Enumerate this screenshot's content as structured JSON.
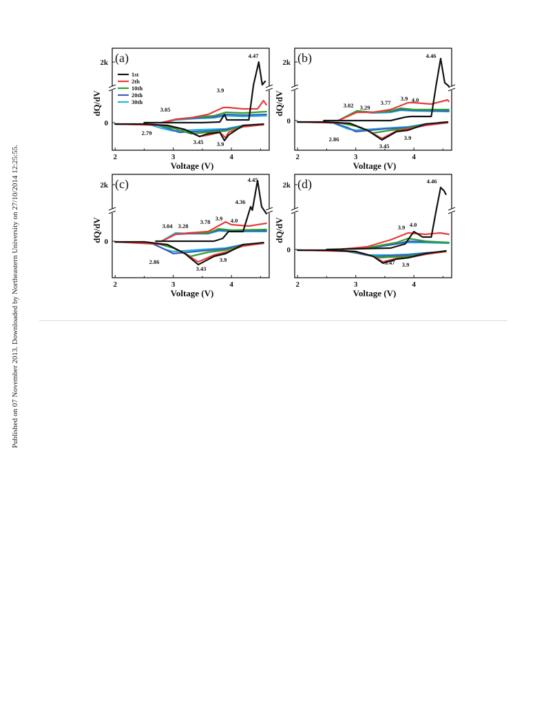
{
  "side_note": "Published on 07 November 2013. Downloaded by Northeastern University on 27/10/2014 12:25:55.",
  "colors": {
    "1st": "#111111",
    "2th": "#e8393a",
    "10th": "#2ca02c",
    "20th": "#3d5bbf",
    "30th": "#22b5d9"
  },
  "chart_data": [
    {
      "type": "line",
      "panel": "(a)",
      "xlabel": "Voltage (V)",
      "ylabel": "dQ/dV",
      "xlim": [
        1.95,
        4.65
      ],
      "x_ticks": [
        "2",
        "3",
        "4"
      ],
      "y_ticks": [
        "0",
        "2k"
      ],
      "legend": [
        "1st",
        "2th",
        "10th",
        "20th",
        "30th"
      ],
      "legend_position": "upper-left",
      "annotations": [
        "4.47",
        "3.9",
        "3.05",
        "2.79",
        "3.45",
        "3.9"
      ],
      "series": [
        {
          "name": "1st",
          "charge_peaks_V": [
            3.9,
            4.47
          ],
          "discharge_peaks_V": [
            3.45,
            3.9
          ]
        },
        {
          "name": "2th",
          "charge_peaks_V": [
            3.05,
            3.9
          ],
          "discharge_peaks_V": [
            3.45,
            3.9
          ]
        },
        {
          "name": "10th",
          "charge_peaks_V": [
            3.05,
            3.9
          ],
          "discharge_peaks_V": [
            3.3,
            3.9
          ]
        },
        {
          "name": "20th",
          "charge_peaks_V": [
            3.05,
            3.9
          ],
          "discharge_peaks_V": [
            3.1,
            3.9
          ]
        },
        {
          "name": "30th",
          "charge_peaks_V": [
            3.05,
            3.9
          ],
          "discharge_peaks_V": [
            2.79,
            3.9
          ]
        }
      ]
    },
    {
      "type": "line",
      "panel": "(b)",
      "xlabel": "Voltage (V)",
      "ylabel": "dQ/dV",
      "xlim": [
        1.95,
        4.65
      ],
      "x_ticks": [
        "2",
        "3",
        "4"
      ],
      "y_ticks": [
        "0",
        "2k"
      ],
      "annotations": [
        "4.46",
        "3.02",
        "3.29",
        "3.77",
        "3.9",
        "4.0",
        "2.86",
        "3.45",
        "3.9"
      ],
      "series": [
        {
          "name": "1st",
          "charge_peaks_V": [
            3.9,
            4.46
          ],
          "discharge_peaks_V": [
            3.45,
            3.9
          ]
        },
        {
          "name": "2th",
          "charge_peaks_V": [
            3.02,
            3.29,
            3.9,
            4.0
          ],
          "discharge_peaks_V": [
            3.45,
            3.9
          ]
        },
        {
          "name": "10th",
          "charge_peaks_V": [
            3.02,
            3.29,
            3.77
          ],
          "discharge_peaks_V": [
            3.3,
            3.9
          ]
        },
        {
          "name": "20th",
          "charge_peaks_V": [
            3.02,
            3.29,
            3.77
          ],
          "discharge_peaks_V": [
            3.0,
            3.9
          ]
        },
        {
          "name": "30th",
          "charge_peaks_V": [
            3.02,
            3.29,
            3.77
          ],
          "discharge_peaks_V": [
            2.86,
            3.9
          ]
        }
      ]
    },
    {
      "type": "line",
      "panel": "(c)",
      "xlabel": "Voltage (V)",
      "ylabel": "dQ/dV",
      "xlim": [
        1.95,
        4.65
      ],
      "x_ticks": [
        "2",
        "3",
        "4"
      ],
      "y_ticks": [
        "0",
        "2k"
      ],
      "annotations": [
        "4.45",
        "4.36",
        "3.04",
        "3.28",
        "3.78",
        "3.9",
        "4.0",
        "2.86",
        "3.43",
        "3.9"
      ],
      "series": [
        {
          "name": "1st",
          "charge_peaks_V": [
            3.9,
            4.36,
            4.45
          ],
          "discharge_peaks_V": [
            3.43,
            3.9
          ]
        },
        {
          "name": "2th",
          "charge_peaks_V": [
            3.04,
            3.28,
            3.9,
            4.0
          ],
          "discharge_peaks_V": [
            3.43,
            3.9
          ]
        },
        {
          "name": "10th",
          "charge_peaks_V": [
            3.04,
            3.28,
            3.78
          ],
          "discharge_peaks_V": [
            3.3,
            3.9
          ]
        },
        {
          "name": "20th",
          "charge_peaks_V": [
            3.04,
            3.28,
            3.78
          ],
          "discharge_peaks_V": [
            3.0,
            3.9
          ]
        },
        {
          "name": "30th",
          "charge_peaks_V": [
            3.04,
            3.28,
            3.78
          ],
          "discharge_peaks_V": [
            2.86,
            3.9
          ]
        }
      ]
    },
    {
      "type": "line",
      "panel": "(d)",
      "xlabel": "Voltage (V)",
      "ylabel": "dQ/dV",
      "xlim": [
        1.95,
        4.65
      ],
      "x_ticks": [
        "2",
        "3",
        "4"
      ],
      "y_ticks": [
        "0",
        "2k"
      ],
      "annotations": [
        "4.46",
        "3.9",
        "4.0",
        "3.47",
        "3.9"
      ],
      "series": [
        {
          "name": "1st",
          "charge_peaks_V": [
            4.0,
            4.46
          ],
          "discharge_peaks_V": [
            3.47,
            3.9
          ]
        },
        {
          "name": "2th",
          "charge_peaks_V": [
            3.9
          ],
          "discharge_peaks_V": [
            3.47,
            3.9
          ]
        },
        {
          "name": "10th",
          "charge_peaks_V": [
            3.9
          ],
          "discharge_peaks_V": [
            3.4,
            3.9
          ]
        },
        {
          "name": "20th",
          "charge_peaks_V": [
            3.9
          ],
          "discharge_peaks_V": [
            3.3,
            3.9
          ]
        },
        {
          "name": "30th",
          "charge_peaks_V": [
            3.9
          ],
          "discharge_peaks_V": [
            3.2,
            3.9
          ]
        }
      ]
    }
  ]
}
